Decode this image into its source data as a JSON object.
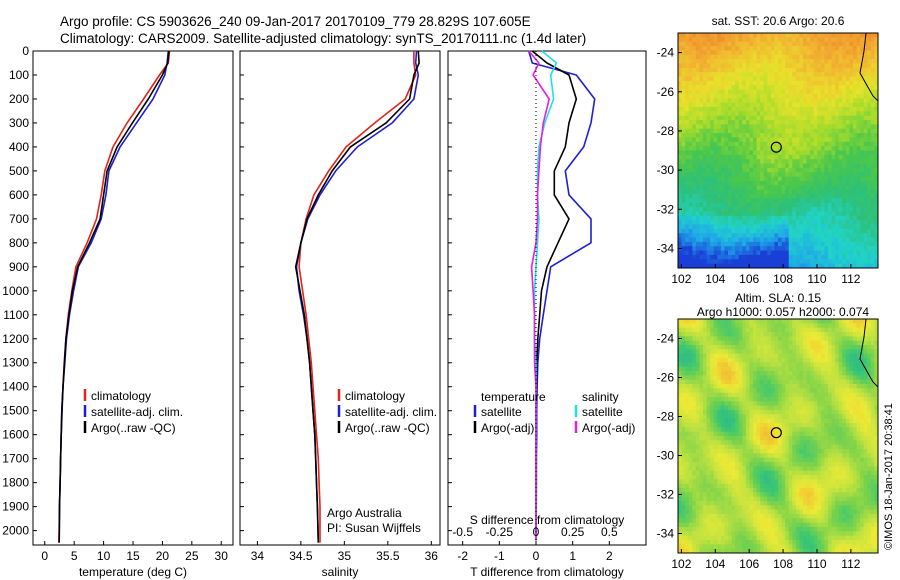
{
  "header": {
    "line1": "Argo profile: CS 5903626_240 09-Jan-2017 20170109_779 28.829S 107.605E",
    "line2": "Climatology: CARS2009. Satellite-adjusted climatology: synTS_20170111.nc (1.4d later)"
  },
  "side_text": "©IMOS 18-Jan-2017 20:38:41",
  "colors": {
    "climatology": "#e3231c",
    "satellite": "#1f1fd2",
    "argo": "#000000",
    "sal_sat": "#1ee2e6",
    "sal_argo": "#e61ee6"
  },
  "chart_data": [
    {
      "type": "line",
      "id": "temperature",
      "xlabel": "temperature (deg C)",
      "ylabel": "",
      "xlim": [
        -2,
        32
      ],
      "ylim": [
        2060,
        0
      ],
      "xticks": [
        "0",
        "5",
        "10",
        "15",
        "20",
        "25",
        "30"
      ],
      "yticks": [
        "0",
        "100",
        "200",
        "300",
        "400",
        "500",
        "600",
        "700",
        "800",
        "900",
        "1000",
        "1100",
        "1200",
        "1300",
        "1400",
        "1500",
        "1600",
        "1700",
        "1800",
        "1900",
        "2000"
      ],
      "legend": [
        "climatology",
        "satellite-adj. clim.",
        "Argo(..raw -QC)"
      ],
      "legend_position": "lower-center",
      "series": [
        {
          "name": "climatology",
          "x": [
            21.2,
            21.0,
            19.5,
            16.8,
            14.0,
            11.6,
            10.2,
            9.6,
            8.8,
            7.2,
            5.3,
            4.6,
            4.0,
            3.6,
            3.3,
            3.1,
            2.9,
            2.8,
            2.7,
            2.6,
            2.5,
            2.4
          ],
          "y": [
            0,
            50,
            100,
            200,
            300,
            400,
            500,
            600,
            700,
            800,
            900,
            1000,
            1100,
            1200,
            1300,
            1400,
            1500,
            1600,
            1700,
            1800,
            1900,
            2050
          ]
        },
        {
          "name": "satellite-adj. clim.",
          "x": [
            21.0,
            20.8,
            20.4,
            18.4,
            15.6,
            12.8,
            10.9,
            10.4,
            9.6,
            7.9,
            5.7,
            4.9,
            4.2,
            3.7,
            3.4,
            3.1,
            2.95,
            2.8,
            2.7,
            2.6,
            2.5,
            2.45
          ],
          "y": [
            0,
            50,
            100,
            200,
            300,
            400,
            500,
            600,
            700,
            800,
            900,
            1000,
            1100,
            1200,
            1300,
            1400,
            1500,
            1600,
            1700,
            1800,
            1900,
            2050
          ]
        },
        {
          "name": "Argo(..raw -QC)",
          "x": [
            21.1,
            20.9,
            20.0,
            17.6,
            14.9,
            12.3,
            10.6,
            10.0,
            9.4,
            7.6,
            5.6,
            4.7,
            4.1,
            3.6,
            3.35,
            3.1,
            2.9,
            2.8,
            2.7,
            2.6,
            2.5,
            2.45
          ],
          "y": [
            0,
            50,
            100,
            200,
            300,
            400,
            500,
            600,
            700,
            800,
            900,
            1000,
            1100,
            1200,
            1300,
            1400,
            1500,
            1600,
            1700,
            1800,
            1900,
            2050
          ]
        }
      ]
    },
    {
      "type": "line",
      "id": "salinity",
      "xlabel": "salinity",
      "xlim": [
        33.8,
        36.1
      ],
      "ylim": [
        2060,
        0
      ],
      "xticks": [
        "34",
        "34.5",
        "35",
        "35.5",
        "36"
      ],
      "legend": [
        "climatology",
        "satellite-adj. clim.",
        "Argo(..raw -QC)"
      ],
      "legend_position": "lower-right",
      "annotation": [
        "Argo Australia",
        "PI: Susan Wijffels"
      ],
      "series": [
        {
          "name": "climatology",
          "x": [
            35.8,
            35.8,
            35.82,
            35.7,
            35.35,
            35.02,
            34.82,
            34.65,
            34.56,
            34.5,
            34.48,
            34.52,
            34.56,
            34.59,
            34.62,
            34.64,
            34.66,
            34.68,
            34.7,
            34.71,
            34.72,
            34.72
          ],
          "y": [
            0,
            50,
            100,
            200,
            300,
            400,
            500,
            600,
            700,
            800,
            900,
            1000,
            1100,
            1200,
            1300,
            1400,
            1500,
            1600,
            1700,
            1800,
            1900,
            2050
          ]
        },
        {
          "name": "satellite-adj. clim.",
          "x": [
            35.83,
            35.82,
            35.85,
            35.8,
            35.55,
            35.15,
            34.9,
            34.72,
            34.58,
            34.5,
            34.45,
            34.48,
            34.53,
            34.57,
            34.6,
            34.62,
            34.64,
            34.66,
            34.67,
            34.68,
            34.69,
            34.7
          ],
          "y": [
            0,
            50,
            100,
            200,
            300,
            400,
            500,
            600,
            700,
            800,
            900,
            1000,
            1100,
            1200,
            1300,
            1400,
            1500,
            1600,
            1700,
            1800,
            1900,
            2050
          ]
        },
        {
          "name": "Argo(..raw -QC)",
          "x": [
            35.85,
            35.86,
            35.8,
            35.75,
            35.48,
            35.07,
            34.86,
            34.7,
            34.57,
            34.5,
            34.44,
            34.49,
            34.54,
            34.57,
            34.6,
            34.62,
            34.64,
            34.66,
            34.67,
            34.68,
            34.69,
            34.7
          ],
          "y": [
            0,
            50,
            100,
            200,
            300,
            400,
            500,
            600,
            700,
            800,
            900,
            1000,
            1100,
            1200,
            1300,
            1400,
            1500,
            1600,
            1700,
            1800,
            1900,
            2050
          ]
        }
      ]
    },
    {
      "type": "line",
      "id": "difference",
      "xlabel": "T difference from climatology",
      "xlabel_top": "S difference from climatology",
      "xlim": [
        -2.4,
        3.0
      ],
      "ylim": [
        2060,
        0
      ],
      "xticks_bottom": [
        "-2",
        "-1",
        "0",
        "1",
        "2"
      ],
      "xticks_top": [
        "-0.5",
        "-0.25",
        "0",
        "0.25",
        "0.5"
      ],
      "legend": [
        "temperature",
        "satellite",
        "Argo(-adj)",
        "salinity",
        "satellite",
        "Argo(-adj)"
      ],
      "legend_position": "lower-center",
      "series": [
        {
          "name": "satellite",
          "group": "temperature",
          "x": [
            -0.2,
            -0.1,
            1.1,
            1.6,
            1.5,
            1.3,
            0.8,
            0.9,
            1.5,
            1.5,
            0.4,
            0.3,
            0.2,
            0.1,
            0.05,
            0.03,
            0.02,
            0.02,
            0.01,
            0.01,
            0.0
          ],
          "y": [
            0,
            50,
            100,
            200,
            300,
            400,
            500,
            600,
            700,
            800,
            900,
            1000,
            1100,
            1200,
            1300,
            1400,
            1500,
            1600,
            1700,
            1800,
            2040
          ]
        },
        {
          "name": "Argo(-adj)",
          "group": "temperature",
          "x": [
            -0.1,
            0.3,
            0.9,
            1.1,
            0.9,
            0.8,
            0.5,
            0.5,
            0.9,
            0.6,
            0.3,
            0.15,
            0.1,
            0.05,
            0.02,
            0.01,
            0.0,
            0.0,
            0.0,
            0.0,
            0.0
          ],
          "y": [
            0,
            50,
            100,
            200,
            300,
            400,
            500,
            600,
            700,
            800,
            900,
            1000,
            1100,
            1200,
            1300,
            1400,
            1500,
            1600,
            1700,
            1800,
            2040
          ]
        },
        {
          "name": "satellite",
          "group": "salinity",
          "x": [
            0.04,
            0.14,
            0.1,
            0.12,
            0.06,
            0.02,
            0.01,
            0.01,
            0.02,
            0.01,
            0.0,
            -0.01,
            -0.01,
            -0.01,
            0.0,
            0.0,
            0.0,
            0.0,
            0.0,
            0.0,
            0.0
          ],
          "y": [
            0,
            50,
            100,
            200,
            300,
            400,
            500,
            600,
            700,
            800,
            900,
            1000,
            1100,
            1200,
            1300,
            1400,
            1500,
            1600,
            1700,
            1800,
            2040
          ]
        },
        {
          "name": "Argo(-adj)",
          "group": "salinity",
          "x": [
            -0.05,
            0.02,
            -0.02,
            0.09,
            0.05,
            0.03,
            0.02,
            0.01,
            0.01,
            0.0,
            -0.03,
            -0.02,
            -0.01,
            -0.01,
            -0.01,
            0.0,
            0.0,
            0.0,
            0.0,
            0.0,
            0.0
          ],
          "y": [
            0,
            50,
            100,
            200,
            300,
            400,
            500,
            600,
            700,
            800,
            900,
            1000,
            1100,
            1200,
            1300,
            1400,
            1500,
            1600,
            1700,
            1800,
            2040
          ]
        }
      ]
    },
    {
      "type": "heatmap",
      "id": "sst-map",
      "title": "sat. SST: 20.6 Argo: 20.6",
      "xlim": [
        101.8,
        113.6
      ],
      "ylim": [
        -35,
        -23
      ],
      "xticks": [
        "102",
        "104",
        "106",
        "108",
        "110",
        "112"
      ],
      "yticks": [
        "-24",
        "-26",
        "-28",
        "-30",
        "-32",
        "-34"
      ],
      "marker": {
        "lon": 107.6,
        "lat": -28.83
      },
      "colormap": [
        "#1a3fd6",
        "#1fa6e8",
        "#21d4c9",
        "#2cc07a",
        "#4cc84a",
        "#a6dc2c",
        "#e8e22b",
        "#f2b431",
        "#ee8a2c"
      ]
    },
    {
      "type": "heatmap",
      "id": "sla-map",
      "title": "Altim. SLA: 0.15",
      "subtitle": "Argo h1000: 0.057 h2000: 0.074",
      "xlim": [
        101.8,
        113.6
      ],
      "ylim": [
        -35,
        -23
      ],
      "xticks": [
        "102",
        "104",
        "106",
        "108",
        "110",
        "112"
      ],
      "yticks": [
        "-24",
        "-26",
        "-28",
        "-30",
        "-32",
        "-34"
      ],
      "marker": {
        "lon": 107.6,
        "lat": -28.83
      },
      "colormap": [
        "#24b49a",
        "#40c86e",
        "#7ed34a",
        "#bfe240",
        "#ecea36",
        "#f2c232",
        "#ee9e30"
      ]
    }
  ]
}
